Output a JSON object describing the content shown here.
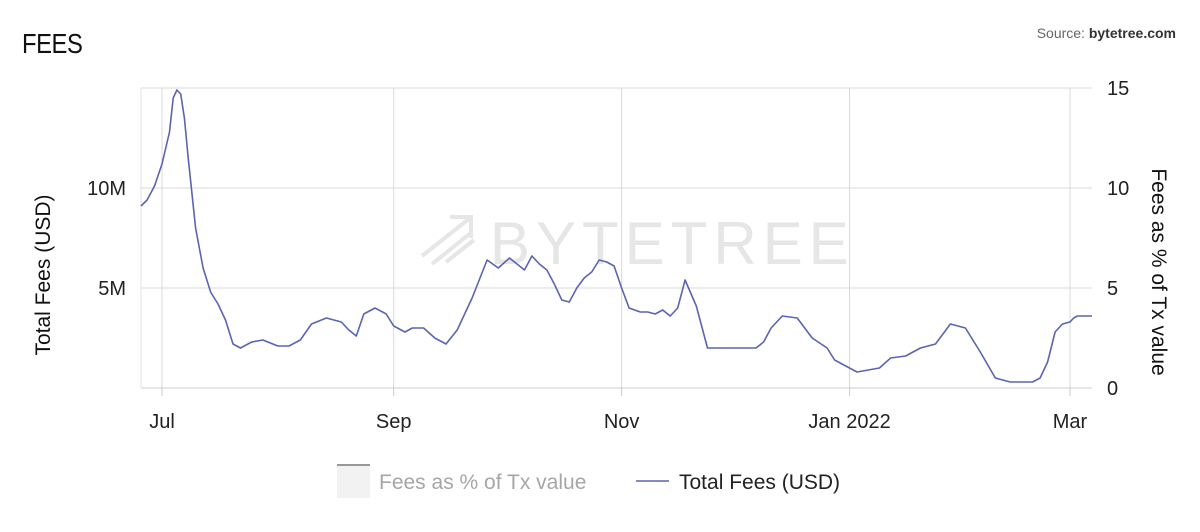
{
  "header": {
    "title": "FEES",
    "source_prefix": "Source: ",
    "source_name": "bytetree.com"
  },
  "watermark": "BYTETREE",
  "chart_data": {
    "type": "line",
    "x_tick_labels": [
      "Jul",
      "Sep",
      "Nov",
      "Jan 2022",
      "Mar"
    ],
    "left_axis": {
      "label": "Total Fees (USD)",
      "tick_labels": [
        "5M",
        "10M"
      ],
      "tick_values": [
        5000000,
        10000000
      ],
      "range": [
        0,
        15000000
      ]
    },
    "right_axis": {
      "label": "Fees as % of Tx value",
      "tick_labels": [
        "0",
        "5",
        "10",
        "15"
      ],
      "tick_values": [
        0,
        5,
        10,
        15
      ],
      "range": [
        0,
        15
      ]
    },
    "grid": true,
    "legend_position": "bottom-center",
    "series": [
      {
        "name": "Fees as % of Tx value",
        "color": "#999999",
        "axis": "right",
        "visible": false,
        "values": []
      },
      {
        "name": "Total Fees (USD)",
        "color": "#5b64b1",
        "axis": "left",
        "visible": true,
        "x": [
          "2021-06-25",
          "2021-06-27",
          "2021-06-29",
          "2021-07-01",
          "2021-07-03",
          "2021-07-04",
          "2021-07-05",
          "2021-07-06",
          "2021-07-07",
          "2021-07-08",
          "2021-07-10",
          "2021-07-12",
          "2021-07-14",
          "2021-07-16",
          "2021-07-18",
          "2021-07-20",
          "2021-07-22",
          "2021-07-25",
          "2021-07-28",
          "2021-08-01",
          "2021-08-04",
          "2021-08-07",
          "2021-08-10",
          "2021-08-14",
          "2021-08-18",
          "2021-08-20",
          "2021-08-22",
          "2021-08-24",
          "2021-08-27",
          "2021-08-30",
          "2021-09-01",
          "2021-09-04",
          "2021-09-06",
          "2021-09-09",
          "2021-09-12",
          "2021-09-15",
          "2021-09-18",
          "2021-09-22",
          "2021-09-26",
          "2021-09-29",
          "2021-10-02",
          "2021-10-04",
          "2021-10-06",
          "2021-10-08",
          "2021-10-10",
          "2021-10-12",
          "2021-10-14",
          "2021-10-16",
          "2021-10-18",
          "2021-10-20",
          "2021-10-22",
          "2021-10-24",
          "2021-10-26",
          "2021-10-28",
          "2021-10-30",
          "2021-11-01",
          "2021-11-03",
          "2021-11-06",
          "2021-11-08",
          "2021-11-10",
          "2021-11-12",
          "2021-11-14",
          "2021-11-16",
          "2021-11-18",
          "2021-11-21",
          "2021-11-24",
          "2021-11-27",
          "2021-11-29",
          "2021-12-01",
          "2021-12-03",
          "2021-12-05",
          "2021-12-07",
          "2021-12-09",
          "2021-12-11",
          "2021-12-14",
          "2021-12-18",
          "2021-12-22",
          "2021-12-26",
          "2021-12-28",
          "2021-12-31",
          "2022-01-03",
          "2022-01-06",
          "2022-01-09",
          "2022-01-12",
          "2022-01-16",
          "2022-01-20",
          "2022-01-24",
          "2022-01-28",
          "2022-02-01",
          "2022-02-05",
          "2022-02-09",
          "2022-02-13",
          "2022-02-16",
          "2022-02-19",
          "2022-02-21",
          "2022-02-23",
          "2022-02-25",
          "2022-02-27",
          "2022-03-01",
          "2022-03-02",
          "2022-03-03",
          "2022-03-04",
          "2022-03-05",
          "2022-03-06",
          "2022-03-07"
        ],
        "values": [
          9.1,
          9.4,
          10.1,
          11.2,
          12.8,
          14.5,
          14.9,
          14.7,
          13.5,
          11.5,
          8.0,
          6.0,
          4.8,
          4.2,
          3.4,
          2.2,
          2.0,
          2.3,
          2.4,
          2.1,
          2.1,
          2.4,
          3.2,
          3.5,
          3.3,
          2.9,
          2.6,
          3.7,
          4.0,
          3.7,
          3.1,
          2.8,
          3.0,
          3.0,
          2.5,
          2.2,
          2.9,
          4.5,
          6.4,
          6.0,
          6.5,
          6.2,
          5.9,
          6.6,
          6.2,
          5.9,
          5.2,
          4.4,
          4.3,
          5.0,
          5.5,
          5.8,
          6.4,
          6.3,
          6.1,
          5.0,
          4.0,
          3.8,
          3.8,
          3.7,
          3.9,
          3.6,
          4.0,
          5.4,
          4.1,
          2.0,
          2.0,
          2.0,
          2.0,
          2.0,
          2.0,
          2.0,
          2.3,
          3.0,
          3.6,
          3.5,
          2.5,
          2.0,
          1.4,
          1.1,
          0.8,
          0.9,
          1.0,
          1.5,
          1.6,
          2.0,
          2.2,
          3.2,
          3.0,
          1.8,
          0.5,
          0.3,
          0.3,
          0.3,
          0.5,
          1.3,
          2.8,
          3.2,
          3.3,
          3.5,
          3.6,
          3.6,
          3.6,
          3.6,
          3.6
        ],
        "unit": "M"
      }
    ]
  }
}
